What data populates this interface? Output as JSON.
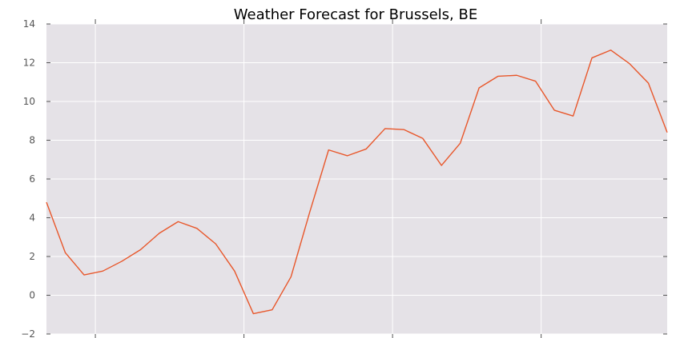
{
  "chart_data": {
    "type": "line",
    "title": "Weather Forecast for Brussels, BE",
    "xlabel": "",
    "ylabel": "",
    "ylim": [
      -2,
      14
    ],
    "yticks": [
      -2,
      0,
      2,
      4,
      6,
      8,
      10,
      12,
      14
    ],
    "ytick_labels": [
      "−2",
      "0",
      "2",
      "4",
      "6",
      "8",
      "10",
      "12",
      "14"
    ],
    "xlim": [
      0,
      33
    ],
    "xticks": [
      2.6,
      10.5,
      18.4,
      26.3
    ],
    "xtick_labels": [
      "",
      "",
      "",
      ""
    ],
    "grid": true,
    "legend": "none",
    "colors": {
      "line": "#E8572B",
      "plot_bg": "#E5E2E7",
      "grid": "#FFFFFF"
    },
    "series": [
      {
        "x": [
          0,
          1,
          2,
          3,
          4,
          5,
          6,
          7,
          8,
          9,
          10,
          11,
          12,
          13,
          14,
          15,
          16,
          17,
          18,
          19,
          20,
          21,
          22,
          23,
          24,
          25,
          26,
          27,
          28,
          29,
          30,
          31,
          32,
          33
        ],
        "values": [
          4.8,
          2.2,
          1.05,
          1.25,
          1.75,
          2.35,
          3.2,
          3.8,
          3.45,
          2.65,
          1.25,
          -0.95,
          -0.75,
          0.95,
          4.3,
          7.5,
          7.2,
          7.55,
          8.6,
          8.55,
          8.1,
          6.7,
          7.85,
          10.7,
          11.3,
          11.35,
          11.05,
          9.55,
          9.25,
          12.25,
          12.65,
          11.95,
          10.95,
          8.4
        ]
      }
    ]
  }
}
